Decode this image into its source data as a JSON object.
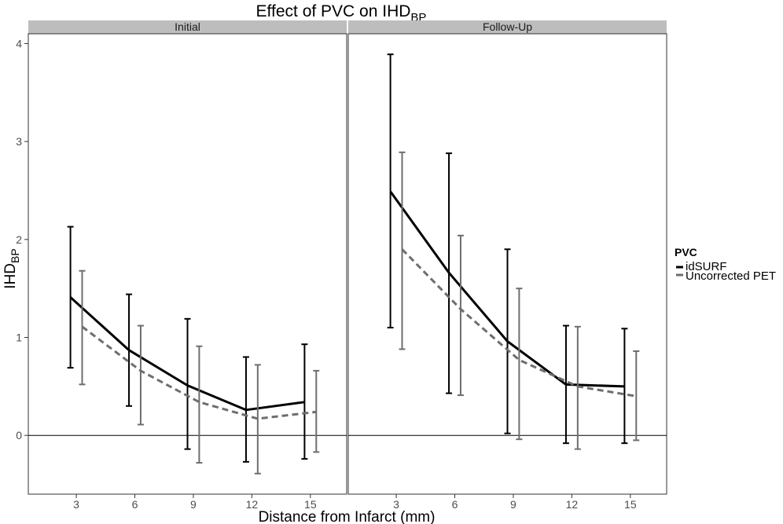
{
  "chart_data": {
    "type": "line",
    "title": "Effect of PVC on IHD",
    "title_subscript": "BP",
    "xlabel": "Distance from Infarct (mm)",
    "ylabel": "IHD",
    "ylabel_subscript": "BP",
    "ylim": [
      -0.6,
      4.1
    ],
    "yticks": [
      0,
      1,
      2,
      3,
      4
    ],
    "xticks": [
      3,
      6,
      9,
      12,
      15
    ],
    "hline": 0,
    "grid": false,
    "legend": {
      "title": "PVC",
      "position": "right",
      "entries": [
        "idSURF",
        "Uncorrected PET"
      ]
    },
    "series_styles": [
      {
        "color": "#000000",
        "dash": "none"
      },
      {
        "color": "#6e6e6e",
        "dash": "8,5"
      }
    ],
    "panels": [
      {
        "label": "Initial",
        "x": [
          3,
          6,
          9,
          12,
          15
        ],
        "series": [
          {
            "name": "idSURF",
            "values": [
              1.41,
              0.87,
              0.51,
              0.26,
              0.34
            ],
            "lower": [
              0.69,
              0.3,
              -0.14,
              -0.27,
              -0.24
            ],
            "upper": [
              2.13,
              1.44,
              1.19,
              0.8,
              0.93
            ]
          },
          {
            "name": "Uncorrected PET",
            "values": [
              1.11,
              0.66,
              0.34,
              0.17,
              0.24
            ],
            "lower": [
              0.52,
              0.11,
              -0.28,
              -0.39,
              -0.17
            ],
            "upper": [
              1.68,
              1.12,
              0.91,
              0.72,
              0.66
            ]
          }
        ]
      },
      {
        "label": "Follow-Up",
        "x": [
          3,
          6,
          9,
          12,
          15
        ],
        "series": [
          {
            "name": "idSURF",
            "values": [
              2.49,
              1.66,
              0.96,
              0.52,
              0.5
            ],
            "lower": [
              1.1,
              0.43,
              0.02,
              -0.08,
              -0.08
            ],
            "upper": [
              3.89,
              2.88,
              1.9,
              1.12,
              1.09
            ]
          },
          {
            "name": "Uncorrected PET",
            "values": [
              1.9,
              1.29,
              0.77,
              0.5,
              0.4
            ],
            "lower": [
              0.88,
              0.41,
              -0.04,
              -0.14,
              -0.05
            ],
            "upper": [
              2.89,
              2.04,
              1.5,
              1.11,
              0.86
            ]
          }
        ]
      }
    ]
  }
}
